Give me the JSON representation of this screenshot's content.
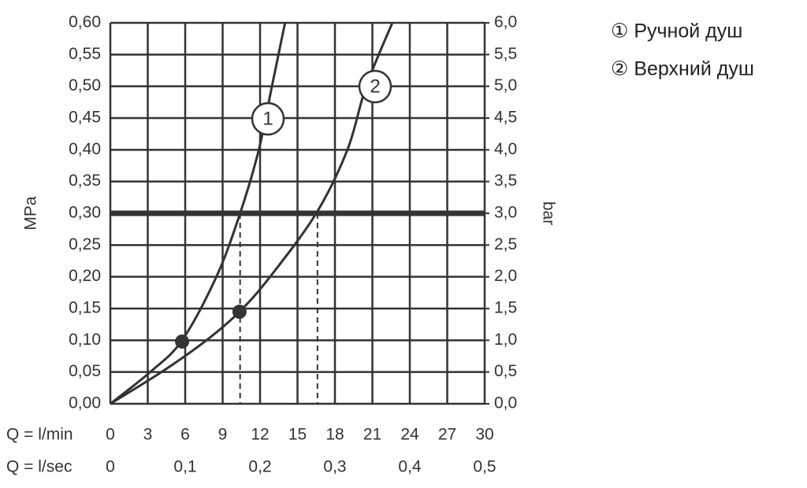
{
  "chart_data": {
    "type": "line",
    "ylabel": "MPa",
    "y2label": "bar",
    "xlabel": "Q = l/min",
    "x2label": "Q = l/sec",
    "xlim": [
      0,
      30
    ],
    "xticks": [
      0,
      3,
      6,
      9,
      12,
      15,
      18,
      21,
      24,
      27,
      30
    ],
    "x2lim": [
      0,
      0.5
    ],
    "x2ticks": [
      0,
      {
        "value": 0.1,
        "label": "0,1"
      },
      {
        "value": 0.2,
        "label": "0,2"
      },
      {
        "value": 0.3,
        "label": "0,3"
      },
      {
        "value": 0.4,
        "label": "0,4"
      },
      {
        "value": 0.5,
        "label": "0,5"
      }
    ],
    "ylim": [
      0,
      0.6
    ],
    "yticks": [
      {
        "value": 0,
        "label": "0,00"
      },
      {
        "value": 0.05,
        "label": "0,05"
      },
      {
        "value": 0.1,
        "label": "0,10"
      },
      {
        "value": 0.15,
        "label": "0,15"
      },
      {
        "value": 0.2,
        "label": "0,20"
      },
      {
        "value": 0.25,
        "label": "0,25"
      },
      {
        "value": 0.3,
        "label": "0,30"
      },
      {
        "value": 0.35,
        "label": "0,35"
      },
      {
        "value": 0.4,
        "label": "0,40"
      },
      {
        "value": 0.45,
        "label": "0,45"
      },
      {
        "value": 0.5,
        "label": "0,50"
      },
      {
        "value": 0.55,
        "label": "0,55"
      },
      {
        "value": 0.6,
        "label": "0,60"
      }
    ],
    "y2lim": [
      0,
      6
    ],
    "y2ticks": [
      {
        "value": 0,
        "label": "0,0"
      },
      {
        "value": 0.5,
        "label": "0,5"
      },
      {
        "value": 1,
        "label": "1,0"
      },
      {
        "value": 1.5,
        "label": "1,5"
      },
      {
        "value": 2,
        "label": "2,0"
      },
      {
        "value": 2.5,
        "label": "2,5"
      },
      {
        "value": 3,
        "label": "3,0"
      },
      {
        "value": 3.5,
        "label": "3,5"
      },
      {
        "value": 4,
        "label": "4,0"
      },
      {
        "value": 4.5,
        "label": "4,5"
      },
      {
        "value": 5,
        "label": "5,0"
      },
      {
        "value": 5.5,
        "label": "5,5"
      },
      {
        "value": 6,
        "label": "6,0"
      }
    ],
    "grid": true,
    "reference_y": 0.3,
    "reference_x": [
      10.4,
      16.6
    ],
    "series": [
      {
        "name": "① Ручной душ",
        "label": "1",
        "color": "#333333",
        "x": [
          0,
          3.2,
          5.75,
          8.5,
          10.4,
          11.9,
          12.95,
          14.0
        ],
        "values": [
          0,
          0.05,
          0.1,
          0.2,
          0.3,
          0.4,
          0.5,
          0.6
        ],
        "point": [
          5.75,
          0.098
        ]
      },
      {
        "name": "② Верхний душ",
        "label": "2",
        "color": "#333333",
        "x": [
          0,
          4.1,
          7.7,
          10.35,
          12.8,
          16.5,
          19.0,
          20.5,
          22.6
        ],
        "values": [
          0,
          0.05,
          0.1,
          0.145,
          0.2,
          0.3,
          0.4,
          0.5,
          0.6
        ],
        "point": [
          10.35,
          0.145
        ]
      }
    ]
  }
}
